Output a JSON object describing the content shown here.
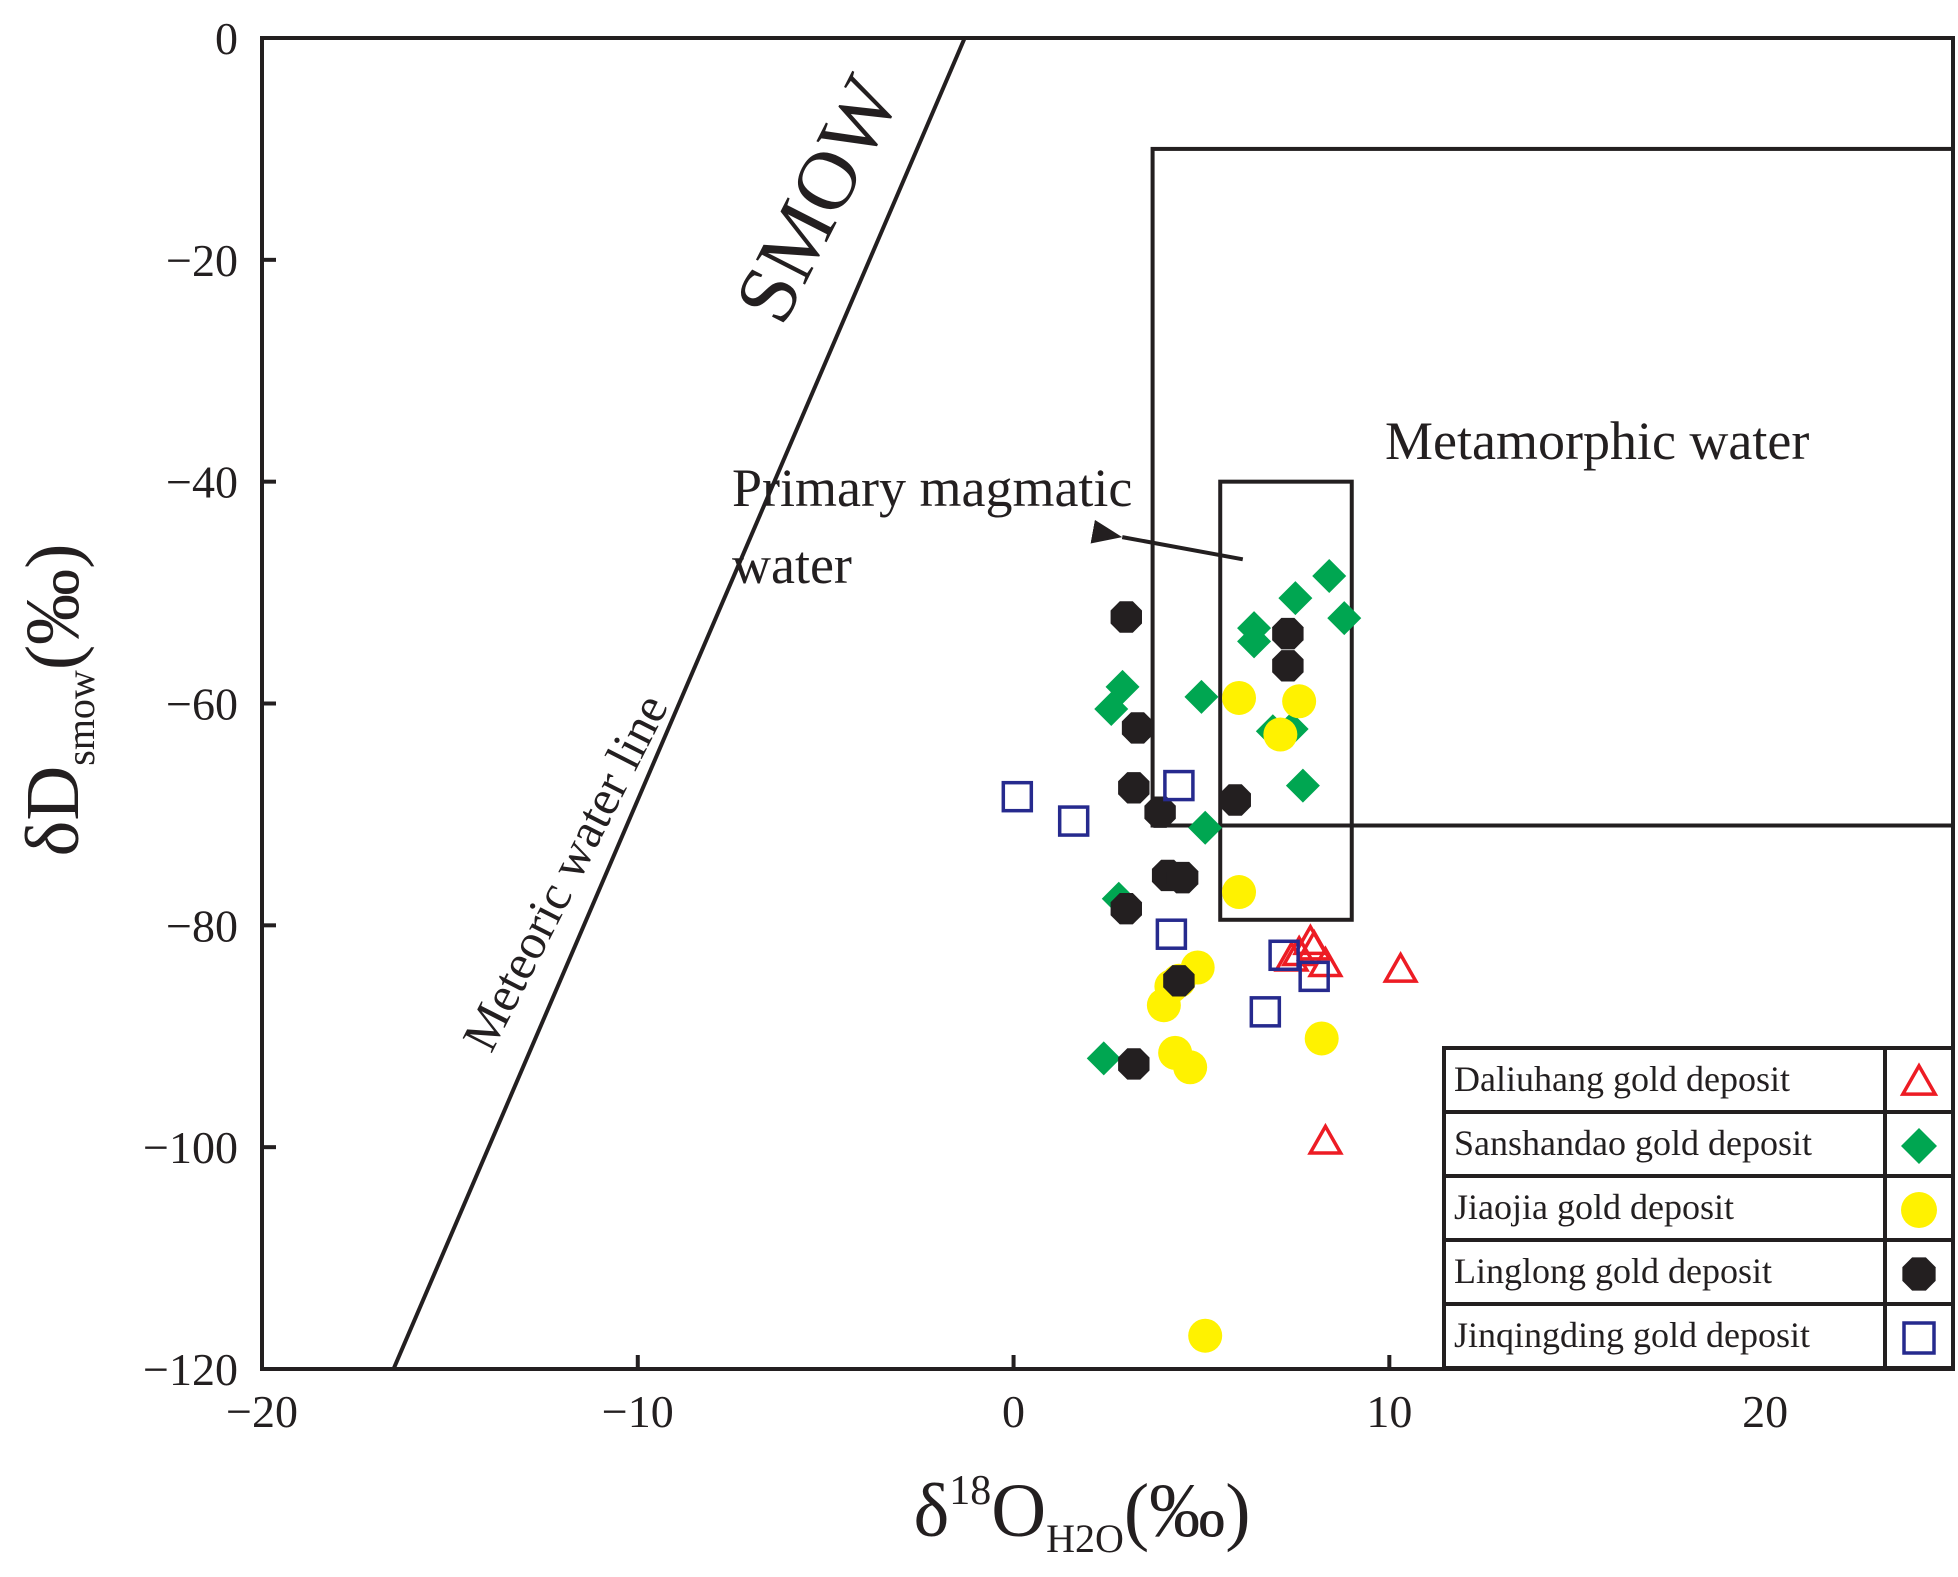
{
  "chart_data": {
    "type": "scatter",
    "xlabel": {
      "main": "δ",
      "sup": "18",
      "base": "O",
      "sub": "H2O",
      "tail": "(‰)"
    },
    "ylabel": {
      "main": "δD",
      "sub": "smow",
      "tail": "(‰)"
    },
    "xlim": [
      -20,
      25
    ],
    "ylim": [
      -120,
      0
    ],
    "x_ticks": [
      -20,
      -10,
      0,
      10,
      20
    ],
    "y_ticks": [
      0,
      -20,
      -40,
      -60,
      -80,
      -100,
      -120
    ],
    "x_tick_labels": [
      "−20",
      "−10",
      "0",
      "10",
      "20"
    ],
    "y_tick_labels": [
      "0",
      "−20",
      "−40",
      "−60",
      "−80",
      "−100",
      "−120"
    ],
    "lines": [
      {
        "name": "meteoric-water-line",
        "x1": -16.5,
        "y1": -120,
        "x2": -1.3,
        "y2": 0
      }
    ],
    "regions": [
      {
        "name": "metamorphic-water-box",
        "x1": 3.7,
        "x2": 25,
        "y1": -71,
        "y2": -10
      },
      {
        "name": "primary-magmatic-water-box",
        "x1": 5.5,
        "x2": 9.0,
        "y1": -79.5,
        "y2": -40
      }
    ],
    "annotations": {
      "smow": "SMOW",
      "meteoric": "Meteoric  water line",
      "metamorphic": "Metamorphic water",
      "magmatic_line1": "Primary  magmatic",
      "magmatic_line2": "water",
      "arrow": {
        "x1": 6.1,
        "y1": -47,
        "x2": 2.2,
        "y2": -45
      }
    },
    "series": [
      {
        "name": "Daliuhang gold deposit",
        "marker": "triangle-open",
        "color": "#ed1c24",
        "points": [
          [
            7.9,
            -81.5
          ],
          [
            7.6,
            -82.5
          ],
          [
            7.4,
            -83
          ],
          [
            8.0,
            -82
          ],
          [
            8.3,
            -83.5
          ],
          [
            10.3,
            -84
          ],
          [
            8.3,
            -99.5
          ]
        ]
      },
      {
        "name": "Sanshandao gold deposit",
        "marker": "diamond",
        "color": "#00a651",
        "points": [
          [
            8.4,
            -48.5
          ],
          [
            7.5,
            -50.5
          ],
          [
            8.8,
            -52.3
          ],
          [
            6.4,
            -53.2
          ],
          [
            6.4,
            -54.4
          ],
          [
            2.9,
            -58.5
          ],
          [
            2.6,
            -60.5
          ],
          [
            5.0,
            -59.4
          ],
          [
            6.9,
            -62.5
          ],
          [
            7.4,
            -62.3
          ],
          [
            7.7,
            -67.4
          ],
          [
            5.1,
            -71.2
          ],
          [
            2.8,
            -77.6
          ],
          [
            2.4,
            -92
          ]
        ]
      },
      {
        "name": "Jiaojia gold deposit",
        "marker": "circle",
        "color": "#fff200",
        "points": [
          [
            6.0,
            -59.5
          ],
          [
            7.6,
            -59.8
          ],
          [
            7.1,
            -62.8
          ],
          [
            6.0,
            -77
          ],
          [
            4.9,
            -83.8
          ],
          [
            4.4,
            -85
          ],
          [
            4.2,
            -85.5
          ],
          [
            4.0,
            -87.2
          ],
          [
            8.2,
            -90.2
          ],
          [
            4.3,
            -91.5
          ],
          [
            4.7,
            -92.8
          ],
          [
            5.1,
            -117
          ]
        ]
      },
      {
        "name": "Linglong gold deposit",
        "marker": "octagon",
        "color": "#231f20",
        "points": [
          [
            3.0,
            -52.2
          ],
          [
            7.3,
            -53.7
          ],
          [
            7.3,
            -56.6
          ],
          [
            3.3,
            -62.2
          ],
          [
            3.2,
            -67.6
          ],
          [
            5.9,
            -68.7
          ],
          [
            3.9,
            -69.8
          ],
          [
            4.1,
            -75.5
          ],
          [
            4.5,
            -75.7
          ],
          [
            3.0,
            -78.5
          ],
          [
            4.4,
            -85
          ],
          [
            3.2,
            -92.5
          ]
        ]
      },
      {
        "name": "Jinqingding gold deposit",
        "marker": "square-open",
        "color": "#262a8e",
        "points": [
          [
            0.1,
            -68.4
          ],
          [
            1.6,
            -70.6
          ],
          [
            4.4,
            -67.4
          ],
          [
            4.2,
            -80.8
          ],
          [
            7.2,
            -82.7
          ],
          [
            8.0,
            -84.6
          ],
          [
            6.7,
            -87.8
          ]
        ]
      }
    ],
    "legend": {
      "position": "bottom-right"
    }
  }
}
